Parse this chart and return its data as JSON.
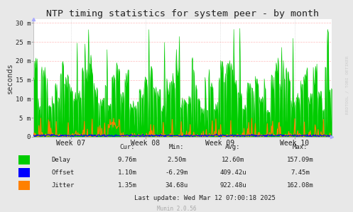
{
  "title": "NTP timing statistics for system peer - by month",
  "ylabel": "seconds",
  "background_color": "#e8e8e8",
  "plot_background": "#ffffff",
  "ytick_labels": [
    "0",
    "5 m",
    "10 m",
    "15 m",
    "20 m",
    "25 m",
    "30 m"
  ],
  "ytick_values": [
    0,
    5,
    10,
    15,
    20,
    25,
    30
  ],
  "ylim": [
    0,
    31
  ],
  "xtick_labels": [
    "Week 07",
    "Week 08",
    "Week 09",
    "Week 10"
  ],
  "watermark": "RRDTOOL / TOBI OETIKER",
  "munin_version": "Munin 2.0.56",
  "delay_color": "#00cc00",
  "offset_color": "#0000ff",
  "jitter_color": "#ff8000",
  "table_headers": [
    "Cur:",
    "Min:",
    "Avg:",
    "Max:"
  ],
  "table_rows": [
    [
      "Delay",
      "9.76m",
      "2.50m",
      "12.60m",
      "157.09m"
    ],
    [
      "Offset",
      "1.10m",
      "-6.29m",
      "409.42u",
      "7.45m"
    ],
    [
      "Jitter",
      "1.35m",
      "34.68u",
      "922.48u",
      "162.08m"
    ]
  ],
  "last_update": "Last update: Wed Mar 12 07:00:18 2025",
  "n_points": 500,
  "seed": 12345
}
